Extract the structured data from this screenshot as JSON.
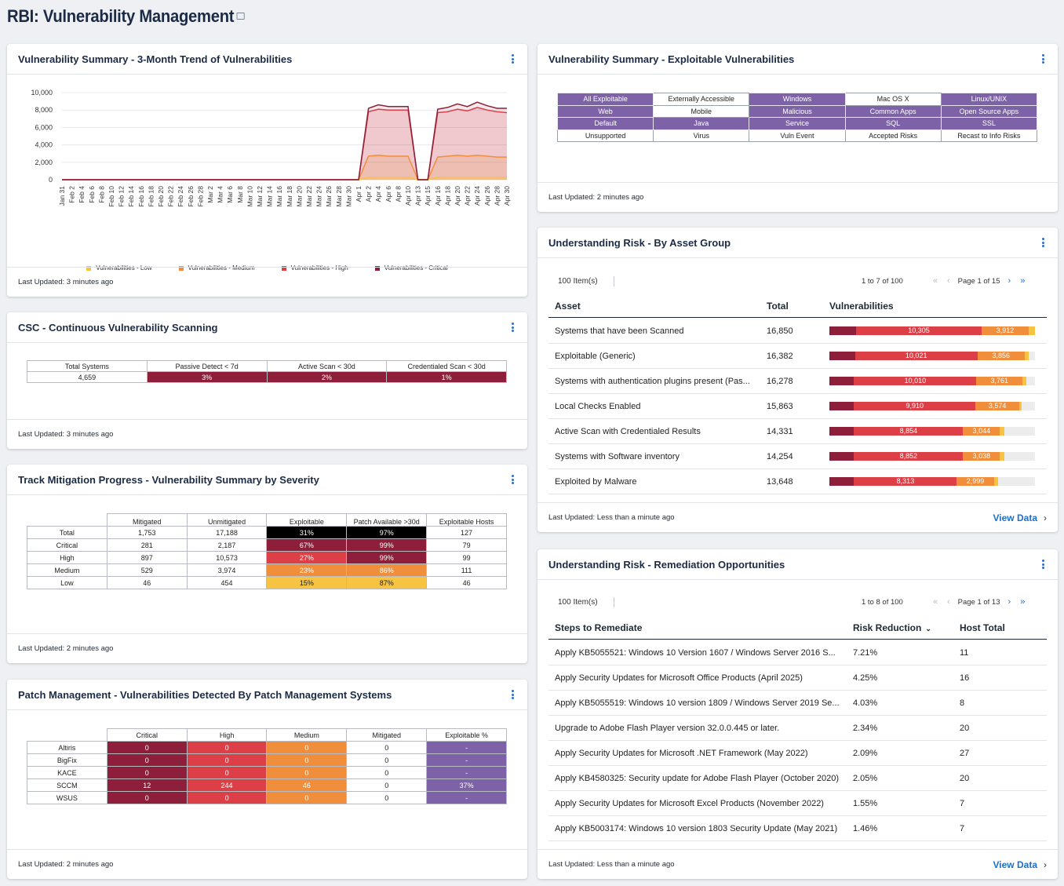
{
  "page": {
    "title": "RBI: Vulnerability Management"
  },
  "trend": {
    "title": "Vulnerability Summary - 3-Month Trend of Vulnerabilities",
    "footer": "Last Updated: 3 minutes ago",
    "y_ticks": [
      "10,000",
      "8,000",
      "6,000",
      "4,000",
      "2,000",
      "0"
    ],
    "x_ticks": [
      "Jan 31",
      "Feb 2",
      "Feb 4",
      "Feb 6",
      "Feb 8",
      "Feb 10",
      "Feb 12",
      "Feb 14",
      "Feb 16",
      "Feb 18",
      "Feb 20",
      "Feb 22",
      "Feb 24",
      "Feb 26",
      "Feb 28",
      "Mar 2",
      "Mar 4",
      "Mar 6",
      "Mar 8",
      "Mar 10",
      "Mar 12",
      "Mar 14",
      "Mar 16",
      "Mar 18",
      "Mar 20",
      "Mar 22",
      "Mar 24",
      "Mar 26",
      "Mar 28",
      "Mar 30",
      "Apr 1",
      "Apr 2",
      "Apr 4",
      "Apr 6",
      "Apr 8",
      "Apr 10",
      "Apr 13",
      "Apr 15",
      "Apr 16",
      "Apr 18",
      "Apr 20",
      "Apr 22",
      "Apr 24",
      "Apr 26",
      "Apr 28",
      "Apr 30"
    ],
    "legend": [
      {
        "label": "Vulnerabilities - Low",
        "color": "#f6c342"
      },
      {
        "label": "Vulnerabilities - Medium",
        "color": "#f08e3b"
      },
      {
        "label": "Vulnerabilities - High",
        "color": "#dd3f47"
      },
      {
        "label": "Vulnerabilities - Critical",
        "color": "#8e1f3a"
      }
    ]
  },
  "chart_data": {
    "type": "line",
    "title": "Vulnerability Summary - 3-Month Trend of Vulnerabilities",
    "xlabel": "",
    "ylabel": "",
    "ylim": [
      0,
      10000
    ],
    "x": [
      "Jan 31",
      "Feb 2",
      "Feb 4",
      "Feb 6",
      "Feb 8",
      "Feb 10",
      "Feb 12",
      "Feb 14",
      "Feb 16",
      "Feb 18",
      "Feb 20",
      "Feb 22",
      "Feb 24",
      "Feb 26",
      "Feb 28",
      "Mar 2",
      "Mar 4",
      "Mar 6",
      "Mar 8",
      "Mar 10",
      "Mar 12",
      "Mar 14",
      "Mar 16",
      "Mar 18",
      "Mar 20",
      "Mar 22",
      "Mar 24",
      "Mar 26",
      "Mar 28",
      "Mar 30",
      "Apr 1",
      "Apr 2",
      "Apr 4",
      "Apr 6",
      "Apr 8",
      "Apr 10",
      "Apr 13",
      "Apr 15",
      "Apr 16",
      "Apr 18",
      "Apr 20",
      "Apr 22",
      "Apr 24",
      "Apr 26",
      "Apr 28",
      "Apr 30"
    ],
    "series": [
      {
        "name": "Vulnerabilities - Low",
        "values": [
          0,
          0,
          0,
          0,
          0,
          0,
          0,
          0,
          0,
          0,
          0,
          0,
          0,
          0,
          0,
          0,
          0,
          0,
          0,
          0,
          0,
          0,
          0,
          0,
          0,
          0,
          0,
          0,
          0,
          0,
          0,
          300,
          300,
          300,
          300,
          300,
          0,
          0,
          300,
          300,
          300,
          300,
          300,
          300,
          300,
          300
        ]
      },
      {
        "name": "Vulnerabilities - Medium",
        "values": [
          0,
          0,
          0,
          0,
          0,
          0,
          0,
          0,
          0,
          0,
          0,
          0,
          0,
          0,
          0,
          0,
          0,
          0,
          0,
          0,
          0,
          0,
          0,
          0,
          0,
          0,
          0,
          0,
          0,
          0,
          0,
          2700,
          2800,
          2700,
          2700,
          2700,
          0,
          0,
          2600,
          2700,
          2800,
          2700,
          2800,
          2700,
          2600,
          2600
        ]
      },
      {
        "name": "Vulnerabilities - High",
        "values": [
          0,
          0,
          0,
          0,
          0,
          0,
          0,
          0,
          0,
          0,
          0,
          0,
          0,
          0,
          0,
          0,
          0,
          0,
          0,
          0,
          0,
          0,
          0,
          0,
          0,
          0,
          0,
          0,
          0,
          0,
          0,
          7800,
          8100,
          8000,
          8000,
          8000,
          0,
          0,
          7700,
          7800,
          8100,
          7900,
          8300,
          8000,
          7800,
          7700
        ]
      },
      {
        "name": "Vulnerabilities - Critical",
        "values": [
          0,
          0,
          0,
          0,
          0,
          0,
          0,
          0,
          0,
          0,
          0,
          0,
          0,
          0,
          0,
          0,
          0,
          0,
          0,
          0,
          0,
          0,
          0,
          0,
          0,
          0,
          0,
          0,
          0,
          0,
          0,
          8200,
          8600,
          8400,
          8400,
          8400,
          0,
          0,
          8100,
          8300,
          8700,
          8400,
          8900,
          8500,
          8200,
          8200
        ]
      }
    ]
  },
  "csc": {
    "title": "CSC - Continuous Vulnerability Scanning",
    "footer": "Last Updated: 3 minutes ago",
    "headers": [
      "Total Systems",
      "Passive Detect < 7d",
      "Active Scan < 30d",
      "Credentialed Scan < 30d"
    ],
    "values": [
      "4,659",
      "3%",
      "2%",
      "1%"
    ]
  },
  "mitigation": {
    "title": "Track Mitigation Progress - Vulnerability Summary by Severity",
    "footer": "Last Updated: 2 minutes ago",
    "headers": [
      "Mitigated",
      "Unmitigated",
      "Exploitable",
      "Patch Available >30d",
      "Exploitable Hosts"
    ],
    "rows": [
      {
        "label": "Total",
        "cells": [
          "1,753",
          "17,188",
          "31%",
          "97%",
          "127"
        ]
      },
      {
        "label": "Critical",
        "cells": [
          "281",
          "2,187",
          "67%",
          "99%",
          "79"
        ]
      },
      {
        "label": "High",
        "cells": [
          "897",
          "10,573",
          "27%",
          "99%",
          "99"
        ]
      },
      {
        "label": "Medium",
        "cells": [
          "529",
          "3,974",
          "23%",
          "86%",
          "111"
        ]
      },
      {
        "label": "Low",
        "cells": [
          "46",
          "454",
          "15%",
          "87%",
          "46"
        ]
      }
    ]
  },
  "patch": {
    "title": "Patch Management - Vulnerabilities Detected By Patch Management Systems",
    "footer": "Last Updated: 2 minutes ago",
    "headers": [
      "Critical",
      "High",
      "Medium",
      "Mitigated",
      "Exploitable %"
    ],
    "rows": [
      {
        "label": "Altiris",
        "cells": [
          "0",
          "0",
          "0",
          "0",
          "-"
        ]
      },
      {
        "label": "BigFix",
        "cells": [
          "0",
          "0",
          "0",
          "0",
          "-"
        ]
      },
      {
        "label": "KACE",
        "cells": [
          "0",
          "0",
          "0",
          "0",
          "-"
        ]
      },
      {
        "label": "SCCM",
        "cells": [
          "12",
          "244",
          "46",
          "0",
          "37%"
        ]
      },
      {
        "label": "WSUS",
        "cells": [
          "0",
          "0",
          "0",
          "0",
          "-"
        ]
      }
    ]
  },
  "exploitable": {
    "title": "Vulnerability Summary - Exploitable Vulnerabilities",
    "footer": "Last Updated: 2 minutes ago",
    "grid": [
      [
        {
          "t": "All Exploitable",
          "p": true
        },
        {
          "t": "Externally Accessible",
          "p": false
        },
        {
          "t": "Windows",
          "p": true
        },
        {
          "t": "Mac OS X",
          "p": false
        },
        {
          "t": "Linux/UNIX",
          "p": true
        }
      ],
      [
        {
          "t": "Web",
          "p": true
        },
        {
          "t": "Mobile",
          "p": false
        },
        {
          "t": "Malicious",
          "p": true
        },
        {
          "t": "Common Apps",
          "p": true
        },
        {
          "t": "Open Source Apps",
          "p": true
        }
      ],
      [
        {
          "t": "Default",
          "p": true
        },
        {
          "t": "Java",
          "p": true
        },
        {
          "t": "Service",
          "p": true
        },
        {
          "t": "SQL",
          "p": true
        },
        {
          "t": "SSL",
          "p": true
        }
      ],
      [
        {
          "t": "Unsupported",
          "p": false
        },
        {
          "t": "Virus",
          "p": false
        },
        {
          "t": "Vuln Event",
          "p": false
        },
        {
          "t": "Accepted Risks",
          "p": false
        },
        {
          "t": "Recast to Info Risks",
          "p": false
        }
      ]
    ]
  },
  "asset_group": {
    "title": "Understanding Risk - By Asset Group",
    "items": "100 Item(s)",
    "range": "1 to 7 of 100",
    "page": "Page 1 of 15",
    "columns": [
      "Asset",
      "Total",
      "Vulnerabilities"
    ],
    "rows": [
      {
        "name": "Systems that have been Scanned",
        "total": "16,850",
        "crit": 0.13,
        "high": 0.61,
        "high_label": "10,305",
        "med": 0.23,
        "med_label": "3,912",
        "low": 0.03
      },
      {
        "name": "Exploitable (Generic)",
        "total": "16,382",
        "crit": 0.125,
        "high": 0.595,
        "high_label": "10,021",
        "med": 0.23,
        "med_label": "3,856",
        "low": 0.02
      },
      {
        "name": "Systems with authentication plugins present (Pas...",
        "total": "16,278",
        "crit": 0.12,
        "high": 0.595,
        "high_label": "10,010",
        "med": 0.225,
        "med_label": "3,761",
        "low": 0.02
      },
      {
        "name": "Local Checks Enabled",
        "total": "15,863",
        "crit": 0.12,
        "high": 0.59,
        "high_label": "9,910",
        "med": 0.215,
        "med_label": "3,574",
        "low": 0.01
      },
      {
        "name": "Active Scan with Credentialed Results",
        "total": "14,331",
        "crit": 0.12,
        "high": 0.53,
        "high_label": "8,854",
        "med": 0.18,
        "med_label": "3,044",
        "low": 0.02
      },
      {
        "name": "Systems with Software inventory",
        "total": "14,254",
        "crit": 0.12,
        "high": 0.53,
        "high_label": "8,852",
        "med": 0.18,
        "med_label": "3,038",
        "low": 0.02
      },
      {
        "name": "Exploited by Malware",
        "total": "13,648",
        "crit": 0.12,
        "high": 0.5,
        "high_label": "8,313",
        "med": 0.18,
        "med_label": "2,999",
        "low": 0.02
      }
    ],
    "footer": "Last Updated: Less than a minute ago",
    "view_data": "View Data"
  },
  "remediation": {
    "title": "Understanding Risk - Remediation Opportunities",
    "items": "100 Item(s)",
    "range": "1 to 8 of 100",
    "page": "Page 1 of 13",
    "columns": [
      "Steps to Remediate",
      "Risk Reduction",
      "Host Total"
    ],
    "rows": [
      {
        "step": "Apply KB5055521: Windows 10 Version 1607 / Windows Server 2016 S...",
        "risk": "7.21%",
        "hosts": "11"
      },
      {
        "step": "Apply Security Updates for Microsoft Office Products (April 2025)",
        "risk": "4.25%",
        "hosts": "16"
      },
      {
        "step": "Apply KB5055519: Windows 10 version 1809 / Windows Server 2019 Se...",
        "risk": "4.03%",
        "hosts": "8"
      },
      {
        "step": "Upgrade to Adobe Flash Player version 32.0.0.445 or later.",
        "risk": "2.34%",
        "hosts": "20"
      },
      {
        "step": "Apply Security Updates for Microsoft .NET Framework (May 2022)",
        "risk": "2.09%",
        "hosts": "27"
      },
      {
        "step": "Apply KB4580325: Security update for Adobe Flash Player (October 2020)",
        "risk": "2.05%",
        "hosts": "20"
      },
      {
        "step": "Apply Security Updates for Microsoft Excel Products (November 2022)",
        "risk": "1.55%",
        "hosts": "7"
      },
      {
        "step": "Apply KB5003174: Windows 10 version 1803 Security Update (May 2021)",
        "risk": "1.46%",
        "hosts": "7"
      }
    ],
    "footer": "Last Updated: Less than a minute ago",
    "view_data": "View Data"
  }
}
